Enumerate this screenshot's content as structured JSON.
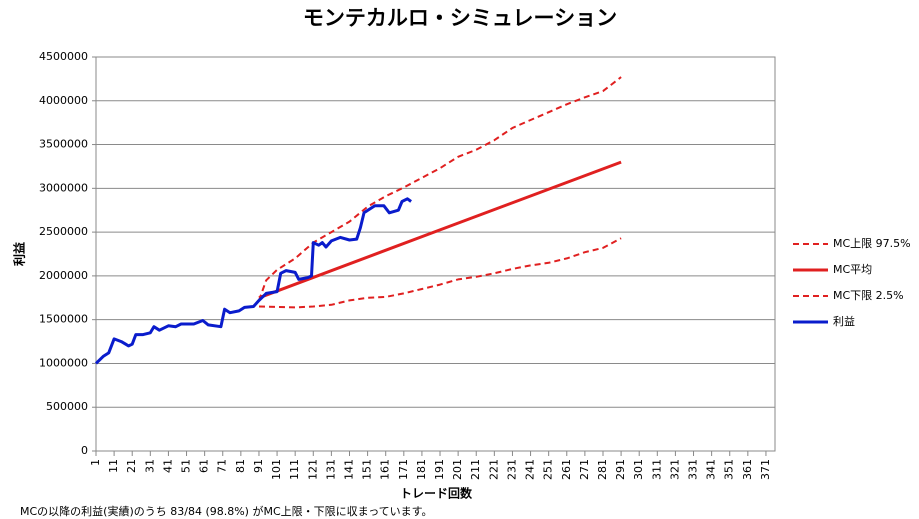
{
  "chart_data": {
    "type": "line",
    "title": "モンテカルロ・シミュレーション",
    "x_label": "トレード回数",
    "y_label": "利益",
    "note": "MCの以降の利益(実績)のうち 83/84 (98.8%) がMC上限・下限に収まっています。",
    "xlim": [
      1,
      376
    ],
    "xticks": [
      1,
      11,
      21,
      31,
      41,
      51,
      61,
      71,
      81,
      91,
      101,
      111,
      121,
      131,
      141,
      151,
      161,
      171,
      181,
      191,
      201,
      211,
      221,
      231,
      241,
      251,
      261,
      271,
      281,
      291,
      301,
      311,
      321,
      331,
      341,
      351,
      361,
      371
    ],
    "ylim": [
      0,
      4500000
    ],
    "yticks": [
      0,
      500000,
      1000000,
      1500000,
      2000000,
      2500000,
      3000000,
      3500000,
      4000000,
      4500000
    ],
    "grid": true,
    "legend": "right",
    "series": [
      {
        "name": "MC上限 97.5%",
        "color": "#e02020",
        "line_style": "dashed",
        "x": [
          91,
          95,
          101,
          111,
          121,
          131,
          141,
          151,
          161,
          171,
          181,
          191,
          201,
          211,
          221,
          231,
          241,
          251,
          261,
          271,
          281,
          291
        ],
        "values": [
          1720000,
          1950000,
          2070000,
          2200000,
          2380000,
          2500000,
          2620000,
          2790000,
          2910000,
          3010000,
          3120000,
          3230000,
          3360000,
          3440000,
          3550000,
          3690000,
          3780000,
          3870000,
          3960000,
          4040000,
          4110000,
          4270000
        ]
      },
      {
        "name": "MC平均",
        "color": "#e02020",
        "line_style": "solid",
        "x": [
          91,
          191,
          291
        ],
        "values": [
          1750000,
          2525000,
          3300000
        ]
      },
      {
        "name": "MC下限 2.5%",
        "color": "#e02020",
        "line_style": "dashed",
        "x": [
          91,
          111,
          121,
          131,
          141,
          151,
          161,
          171,
          181,
          191,
          201,
          211,
          221,
          231,
          241,
          251,
          261,
          271,
          281,
          291
        ],
        "values": [
          1650000,
          1640000,
          1650000,
          1670000,
          1720000,
          1750000,
          1760000,
          1800000,
          1850000,
          1900000,
          1960000,
          1990000,
          2030000,
          2080000,
          2120000,
          2150000,
          2200000,
          2270000,
          2320000,
          2430000
        ]
      },
      {
        "name": "利益",
        "color": "#0a1ccc",
        "line_style": "solid",
        "x": [
          1,
          5,
          8,
          11,
          15,
          19,
          21,
          23,
          27,
          31,
          33,
          36,
          41,
          45,
          48,
          55,
          60,
          63,
          70,
          72,
          75,
          80,
          83,
          88,
          91,
          95,
          101,
          103,
          106,
          111,
          113,
          118,
          120,
          121,
          124,
          126,
          128,
          131,
          136,
          141,
          145,
          147,
          149,
          155,
          160,
          163,
          168,
          170,
          173,
          175
        ],
        "values": [
          1000000,
          1080000,
          1120000,
          1280000,
          1250000,
          1200000,
          1220000,
          1330000,
          1330000,
          1350000,
          1420000,
          1380000,
          1430000,
          1420000,
          1450000,
          1450000,
          1490000,
          1440000,
          1420000,
          1620000,
          1580000,
          1600000,
          1640000,
          1650000,
          1720000,
          1800000,
          1820000,
          2030000,
          2060000,
          2040000,
          1960000,
          1980000,
          2000000,
          2380000,
          2350000,
          2380000,
          2330000,
          2400000,
          2440000,
          2410000,
          2420000,
          2550000,
          2720000,
          2800000,
          2800000,
          2720000,
          2750000,
          2850000,
          2880000,
          2850000
        ]
      }
    ]
  }
}
